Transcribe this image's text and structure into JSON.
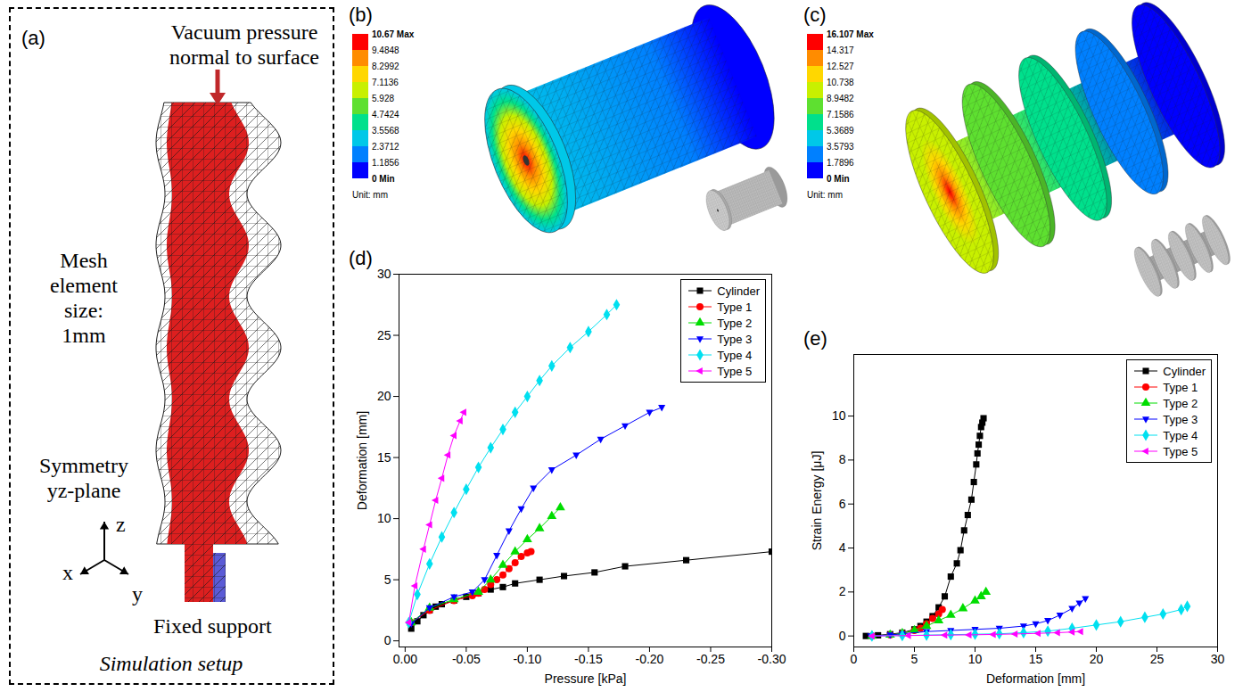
{
  "setup": {
    "label": "(a)",
    "pressure": "Vacuum pressure normal to surface",
    "mesh": "Mesh element size: 1mm",
    "symmetry": "Symmetry yz-plane",
    "support": "Fixed support",
    "caption": "Simulation setup",
    "axes": {
      "x": "x",
      "y": "y",
      "z": "z"
    }
  },
  "contours": [
    {
      "label": "(b)",
      "unit": "Unit: mm",
      "colorbar": {
        "range": [
          0,
          10.67
        ],
        "ticks": [
          {
            "value": 10.67,
            "label": "10.67 Max"
          },
          9.4848,
          8.2992,
          7.1136,
          5.928,
          4.7424,
          3.5568,
          2.3712,
          1.1856,
          {
            "value": 0,
            "label": "0 Min"
          }
        ],
        "colors": [
          "#ff0000",
          "#ff8c00",
          "#ffd700",
          "#c8f000",
          "#5ee030",
          "#00e08c",
          "#00c8e8",
          "#0080ff",
          "#0000ff"
        ]
      }
    },
    {
      "label": "(c)",
      "unit": "Unit: mm",
      "colorbar": {
        "range": [
          0,
          16.107
        ],
        "ticks": [
          {
            "value": 16.107,
            "label": "16.107 Max"
          },
          14.317,
          12.527,
          10.738,
          8.9482,
          7.1586,
          5.3689,
          3.5793,
          1.7896,
          {
            "value": 0,
            "label": "0 Min"
          }
        ],
        "colors": [
          "#ff0000",
          "#ff8c00",
          "#ffd700",
          "#c8f000",
          "#5ee030",
          "#00e08c",
          "#00c8e8",
          "#0080ff",
          "#0000ff"
        ]
      }
    }
  ],
  "chart_data": [
    {
      "type": "line",
      "label": "(d)",
      "x_label": "Pressure [kPa]",
      "y_label": "Deformation [mm]",
      "xlim": [
        0.005,
        -0.3
      ],
      "ylim": [
        -0.5,
        30
      ],
      "xticks": [
        {
          "value": 0,
          "label": "0.00"
        },
        -0.05,
        {
          "value": -0.1,
          "label": "-0.10"
        },
        -0.15,
        {
          "value": -0.2,
          "label": "-0.20"
        },
        -0.25,
        {
          "value": -0.3,
          "label": "-0.30"
        }
      ],
      "yticks": [
        0,
        5,
        10,
        15,
        20,
        25,
        30
      ],
      "grid": false,
      "legend": "top-right",
      "series": [
        {
          "name": "Cylinder",
          "color": "#000000",
          "marker": "square",
          "x": [
            -0.005,
            -0.01,
            -0.015,
            -0.02,
            -0.025,
            -0.03,
            -0.04,
            -0.05,
            -0.06,
            -0.07,
            -0.08,
            -0.09,
            -0.11,
            -0.13,
            -0.155,
            -0.18,
            -0.23,
            -0.3
          ],
          "values": [
            1.0,
            1.6,
            2.1,
            2.5,
            2.8,
            3.0,
            3.3,
            3.6,
            3.9,
            4.2,
            4.4,
            4.7,
            5.0,
            5.3,
            5.6,
            6.1,
            6.6,
            7.3
          ]
        },
        {
          "name": "Type 1",
          "color": "#ff0000",
          "marker": "circle",
          "x": [
            -0.005,
            -0.02,
            -0.04,
            -0.055,
            -0.06,
            -0.065,
            -0.07,
            -0.075,
            -0.08,
            -0.085,
            -0.09,
            -0.095,
            -0.1,
            -0.103
          ],
          "values": [
            1.5,
            2.5,
            3.3,
            3.7,
            3.9,
            4.2,
            4.6,
            5.0,
            5.4,
            5.9,
            6.4,
            6.9,
            7.2,
            7.3
          ]
        },
        {
          "name": "Type 2",
          "color": "#00dd00",
          "marker": "triangle-up",
          "x": [
            -0.005,
            -0.02,
            -0.04,
            -0.06,
            -0.07,
            -0.08,
            -0.09,
            -0.1,
            -0.11,
            -0.12,
            -0.127
          ],
          "values": [
            1.5,
            2.7,
            3.4,
            4.0,
            5.0,
            6.2,
            7.3,
            8.3,
            9.2,
            10.2,
            10.9
          ]
        },
        {
          "name": "Type 3",
          "color": "#0000ff",
          "marker": "triangle-down",
          "x": [
            -0.005,
            -0.02,
            -0.04,
            -0.055,
            -0.065,
            -0.075,
            -0.085,
            -0.095,
            -0.105,
            -0.12,
            -0.14,
            -0.16,
            -0.18,
            -0.2,
            -0.21
          ],
          "values": [
            1.4,
            2.7,
            3.6,
            4.0,
            5.0,
            7.0,
            9.0,
            10.8,
            12.5,
            14.0,
            15.2,
            16.5,
            17.6,
            18.7,
            19.1
          ]
        },
        {
          "name": "Type 4",
          "color": "#00e0f0",
          "marker": "diamond",
          "x": [
            -0.003,
            -0.01,
            -0.02,
            -0.03,
            -0.04,
            -0.05,
            -0.06,
            -0.07,
            -0.08,
            -0.09,
            -0.1,
            -0.11,
            -0.12,
            -0.135,
            -0.15,
            -0.165,
            -0.173
          ],
          "values": [
            1.5,
            3.8,
            6.3,
            8.5,
            10.5,
            12.4,
            14.2,
            15.8,
            17.3,
            18.7,
            20.0,
            21.3,
            22.5,
            24.0,
            25.3,
            26.7,
            27.5
          ]
        },
        {
          "name": "Type 5",
          "color": "#ff00ff",
          "marker": "triangle-left",
          "x": [
            -0.003,
            -0.008,
            -0.015,
            -0.02,
            -0.025,
            -0.03,
            -0.035,
            -0.04,
            -0.045,
            -0.048
          ],
          "values": [
            1.5,
            4.5,
            7.5,
            9.5,
            11.5,
            13.3,
            15.2,
            16.8,
            18.0,
            18.7
          ]
        }
      ]
    },
    {
      "type": "line",
      "label": "(e)",
      "x_label": "Deformation [mm]",
      "y_label": "Strain Energy [μJ]",
      "xlim": [
        0,
        30
      ],
      "ylim": [
        -0.5,
        12.8
      ],
      "xticks": [
        0,
        5,
        10,
        15,
        20,
        25,
        30
      ],
      "yticks": [
        0,
        2,
        4,
        6,
        8,
        10
      ],
      "grid": false,
      "legend": "top-right",
      "series": [
        {
          "name": "Cylinder",
          "color": "#000000",
          "marker": "square",
          "x": [
            1.0,
            2,
            3,
            4,
            5,
            5.5,
            6,
            6.5,
            7,
            7.5,
            8,
            8.5,
            8.8,
            9.1,
            9.4,
            9.7,
            9.9,
            10.1,
            10.2,
            10.3,
            10.4,
            10.5,
            10.6,
            10.7
          ],
          "values": [
            0,
            0.03,
            0.08,
            0.15,
            0.3,
            0.45,
            0.65,
            0.9,
            1.3,
            1.8,
            2.7,
            3.3,
            3.9,
            4.8,
            5.5,
            6.2,
            7.0,
            7.8,
            8.3,
            8.7,
            9.1,
            9.5,
            9.7,
            9.9
          ]
        },
        {
          "name": "Type 1",
          "color": "#ff0000",
          "marker": "circle",
          "x": [
            1.5,
            3,
            4,
            5,
            5.5,
            6,
            6.5,
            7,
            7.3
          ],
          "values": [
            0,
            0.05,
            0.12,
            0.25,
            0.35,
            0.55,
            0.8,
            1.0,
            1.2
          ]
        },
        {
          "name": "Type 2",
          "color": "#00dd00",
          "marker": "triangle-up",
          "x": [
            1.5,
            3,
            4,
            5,
            6,
            7,
            8,
            9,
            10,
            10.5,
            10.9
          ],
          "values": [
            0,
            0.05,
            0.12,
            0.25,
            0.45,
            0.7,
            0.95,
            1.25,
            1.6,
            1.8,
            2.0
          ]
        },
        {
          "name": "Type 3",
          "color": "#0000ff",
          "marker": "triangle-down",
          "x": [
            1.4,
            3,
            4,
            6,
            8,
            10,
            12,
            14,
            15,
            16,
            17,
            18,
            18.6,
            19.1
          ],
          "values": [
            0,
            0.05,
            0.1,
            0.2,
            0.25,
            0.3,
            0.35,
            0.45,
            0.55,
            0.7,
            0.95,
            1.25,
            1.5,
            1.7
          ]
        },
        {
          "name": "Type 4",
          "color": "#00e0f0",
          "marker": "diamond",
          "x": [
            1.5,
            4,
            6,
            8,
            10,
            12,
            14,
            16,
            18,
            20,
            22,
            24,
            25.5,
            27,
            27.5
          ],
          "values": [
            0,
            0.02,
            0.04,
            0.06,
            0.08,
            0.1,
            0.15,
            0.22,
            0.35,
            0.5,
            0.65,
            0.85,
            1.0,
            1.2,
            1.35
          ]
        },
        {
          "name": "Type 5",
          "color": "#ff00ff",
          "marker": "triangle-left",
          "x": [
            1.5,
            4.5,
            7.5,
            9.5,
            11.5,
            13.3,
            15.2,
            16.8,
            18,
            18.7
          ],
          "values": [
            0,
            0.02,
            0.04,
            0.05,
            0.07,
            0.09,
            0.12,
            0.15,
            0.18,
            0.2
          ]
        }
      ]
    }
  ]
}
